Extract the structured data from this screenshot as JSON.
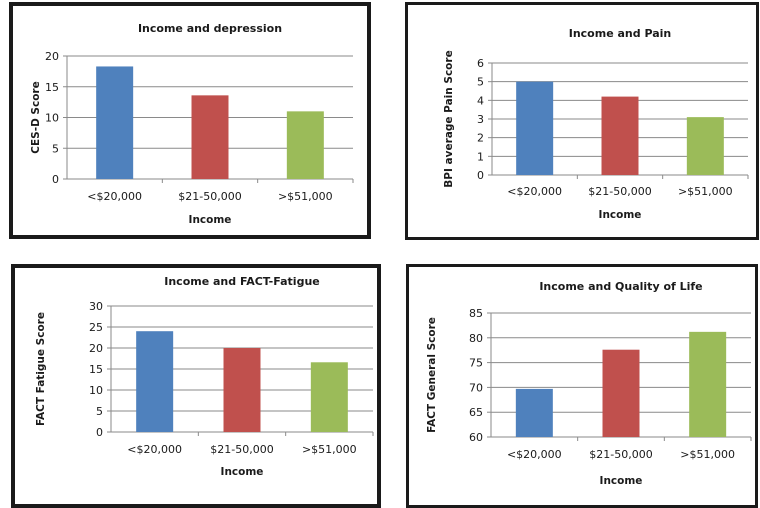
{
  "chart_data": [
    {
      "type": "bar",
      "title": "Income and depression",
      "xlabel": "Income",
      "ylabel": "CES-D Score",
      "categories": [
        "<$20,000",
        "$21-50,000",
        ">$51,000"
      ],
      "values": [
        18.3,
        13.6,
        11.0
      ],
      "ylim": [
        0,
        20
      ],
      "yticks": [
        0,
        5,
        10,
        15,
        20
      ],
      "colors": [
        "#4f81bd",
        "#c0504d",
        "#9bbb59"
      ],
      "grid": true
    },
    {
      "type": "bar",
      "title": "Income and Pain",
      "xlabel": "Income",
      "ylabel": "BPI average Pain Score",
      "categories": [
        "<$20,000",
        "$21-50,000",
        ">$51,000"
      ],
      "values": [
        5.0,
        4.2,
        3.1
      ],
      "ylim": [
        0,
        6
      ],
      "yticks": [
        0,
        1,
        2,
        3,
        4,
        5,
        6
      ],
      "colors": [
        "#4f81bd",
        "#c0504d",
        "#9bbb59"
      ],
      "grid": true
    },
    {
      "type": "bar",
      "title": "Income and FACT-Fatigue",
      "xlabel": "Income",
      "ylabel": "FACT Fatigue Score",
      "categories": [
        "<$20,000",
        "$21-50,000",
        ">$51,000"
      ],
      "values": [
        24.0,
        20.0,
        16.6
      ],
      "ylim": [
        0,
        30
      ],
      "yticks": [
        0,
        5,
        10,
        15,
        20,
        25,
        30
      ],
      "colors": [
        "#4f81bd",
        "#c0504d",
        "#9bbb59"
      ],
      "grid": true
    },
    {
      "type": "bar",
      "title": "Income and Quality of Life",
      "xlabel": "Income",
      "ylabel": "FACT General Score",
      "categories": [
        "<$20,000",
        "$21-50,000",
        ">$51,000"
      ],
      "values": [
        69.7,
        77.6,
        81.2
      ],
      "ylim": [
        60,
        85
      ],
      "yticks": [
        60,
        65,
        70,
        75,
        80,
        85
      ],
      "colors": [
        "#4f81bd",
        "#c0504d",
        "#9bbb59"
      ],
      "grid": true
    }
  ]
}
